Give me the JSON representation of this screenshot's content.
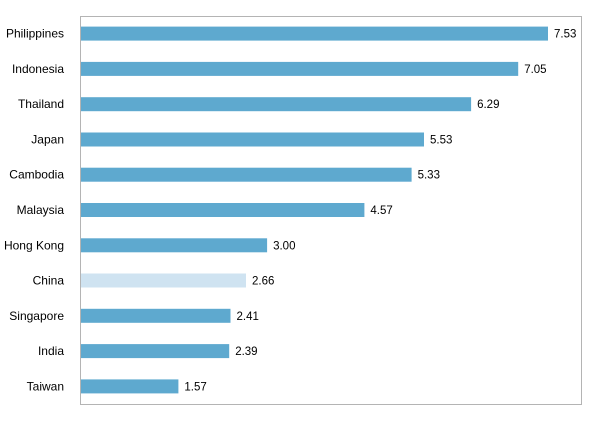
{
  "chart_data": {
    "type": "bar",
    "orientation": "horizontal",
    "title": "",
    "xlabel": "",
    "ylabel": "",
    "categories": [
      "Philippines",
      "Indonesia",
      "Thailand",
      "Japan",
      "Cambodia",
      "Malaysia",
      "Hong Kong",
      "China",
      "Singapore",
      "India",
      "Taiwan"
    ],
    "values": [
      7.53,
      7.05,
      6.29,
      5.53,
      5.33,
      4.57,
      3.0,
      2.66,
      2.41,
      2.39,
      1.57
    ],
    "value_labels": [
      "7.53",
      "7.05",
      "6.29",
      "5.53",
      "5.33",
      "4.57",
      "3.00",
      "2.66",
      "2.41",
      "2.39",
      "1.57"
    ],
    "highlight_category": "China",
    "xlim": [
      0,
      7.9
    ],
    "grid": false,
    "legend": "none",
    "colors": {
      "bar": "#5ea9cf",
      "highlight": "#cfe3f1",
      "frame": "#b4b4b4",
      "text": "#000000"
    }
  }
}
